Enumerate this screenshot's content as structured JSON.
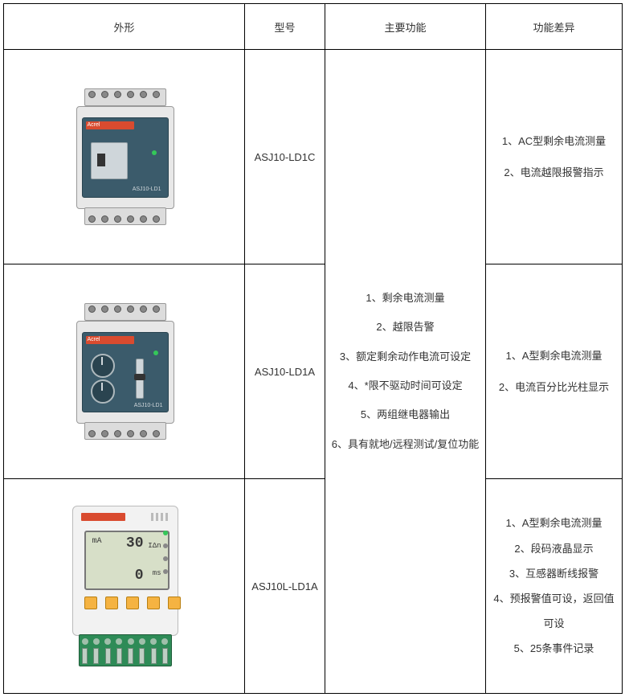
{
  "headers": {
    "c1": "外形",
    "c2": "型号",
    "c3": "主要功能",
    "c4": "功能差异"
  },
  "models": {
    "r1": "ASJ10-LD1C",
    "r2": "ASJ10-LD1A",
    "r3": "ASJ10L-LD1A"
  },
  "main_functions": {
    "f1": "1、剩余电流测量",
    "f2": "2、越限告警",
    "f3": "3、额定剩余动作电流可设定",
    "f4": "4、*限不驱动时间可设定",
    "f5": "5、两组继电器输出",
    "f6": "6、具有就地/远程测试/复位功能"
  },
  "diff": {
    "r1": {
      "d1": "1、AC型剩余电流测量",
      "d2": "2、电流越限报警指示"
    },
    "r2": {
      "d1": "1、A型剩余电流测量",
      "d2": "2、电流百分比光柱显示"
    },
    "r3": {
      "d1": "1、A型剩余电流测量",
      "d2": "2、段码液晶显示",
      "d3": "3、互感器断线报警",
      "d4": "4、预报警值可设，返回值可设",
      "d5": "5、25条事件记录"
    }
  },
  "device_labels": {
    "brand": "Acrel",
    "a_label": "ASJ10-LD1",
    "lcd_l1": "mA",
    "lcd_big1": "30",
    "lcd_unit1": "IΔn",
    "lcd_big2": "0",
    "lcd_unit2": "ms"
  },
  "colors": {
    "border": "#000000",
    "face": "#3b5b6b",
    "brand": "#d94b2f",
    "lcd": "#d7dfc8",
    "btn": "#f5b342",
    "terminal": "#2e8b57"
  }
}
